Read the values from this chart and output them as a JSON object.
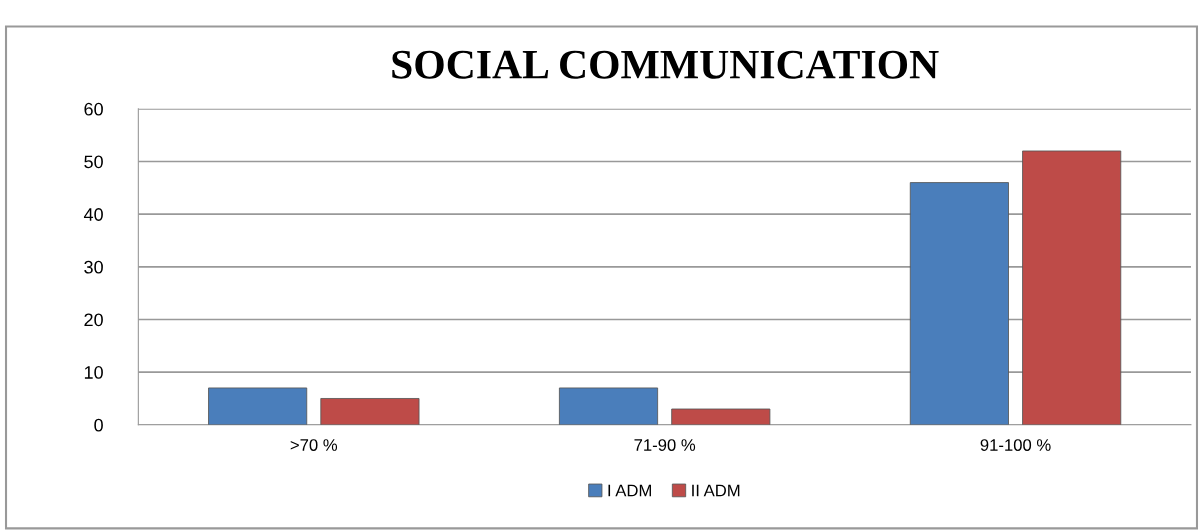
{
  "chart_data": {
    "type": "bar",
    "title": "SOCIAL COMMUNICATION",
    "categories": [
      ">70 %",
      "71-90 %",
      "91-100 %"
    ],
    "series": [
      {
        "name": "I ADM",
        "color": "#4a7ebb",
        "values": [
          7,
          7,
          46
        ]
      },
      {
        "name": "II ADM",
        "color": "#be4b48",
        "values": [
          5,
          3,
          52
        ]
      }
    ],
    "ylim": [
      0,
      60
    ],
    "yticks": [
      0,
      10,
      20,
      30,
      40,
      50,
      60
    ],
    "grid": "y",
    "legend": "bottom"
  }
}
